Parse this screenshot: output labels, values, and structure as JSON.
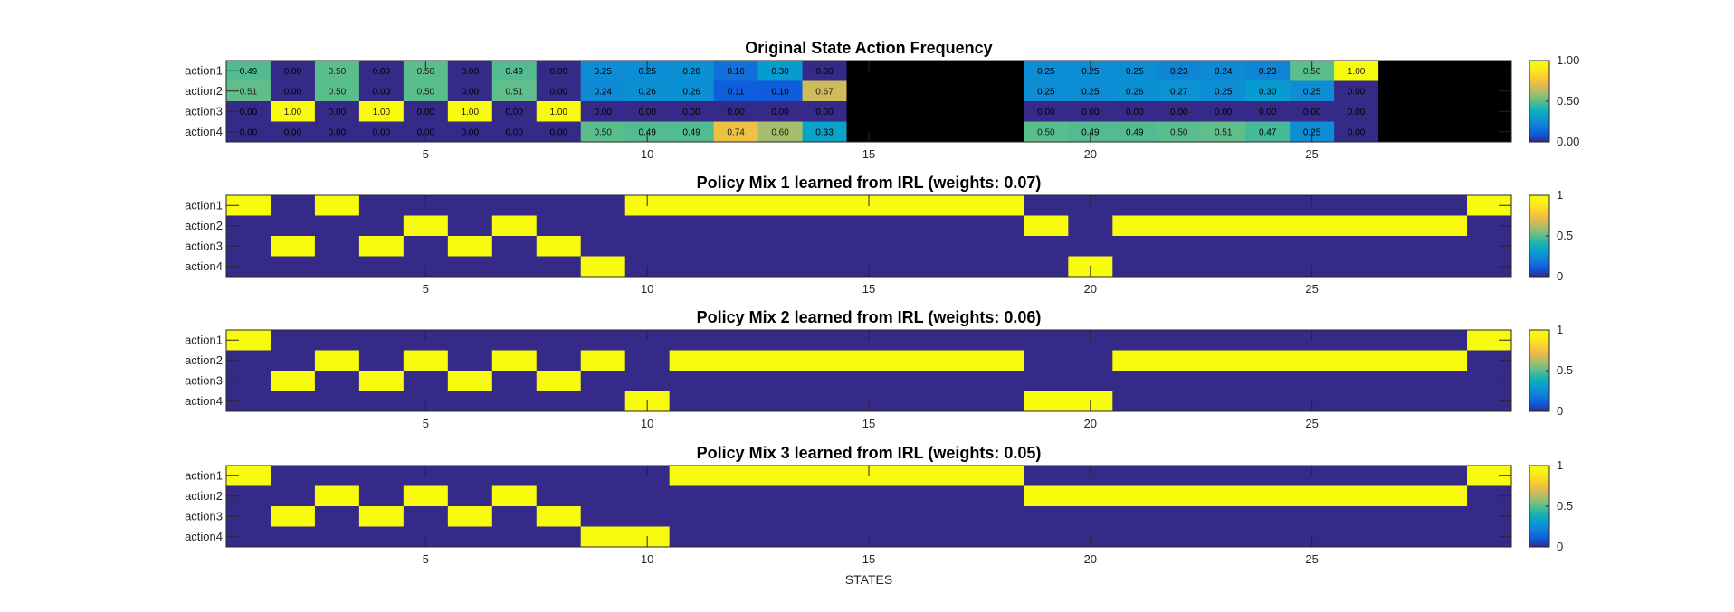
{
  "chart_data": [
    {
      "type": "heatmap",
      "title": "Original State Action Frequency",
      "rows": [
        "action1",
        "action2",
        "action3",
        "action4"
      ],
      "xticks": [
        5,
        10,
        15,
        20,
        25
      ],
      "xlim": [
        0.5,
        29.5
      ],
      "clim": [
        0,
        1
      ],
      "colorbar_ticks": [
        "0.00",
        "0.50",
        "1.00"
      ],
      "colorbar_values": [
        0,
        0.5,
        1
      ],
      "show_labels": true,
      "nan_color": "#000000",
      "values": [
        [
          0.49,
          0.0,
          0.5,
          0.0,
          0.5,
          0.0,
          0.49,
          0.0,
          0.25,
          0.25,
          0.26,
          0.16,
          0.3,
          0.0,
          null,
          null,
          null,
          null,
          0.25,
          0.25,
          0.25,
          0.23,
          0.24,
          0.23,
          0.5,
          1.0,
          null,
          null,
          null
        ],
        [
          0.51,
          0.0,
          0.5,
          0.0,
          0.5,
          0.0,
          0.51,
          0.0,
          0.24,
          0.26,
          0.26,
          0.11,
          0.1,
          0.67,
          null,
          null,
          null,
          null,
          0.25,
          0.25,
          0.26,
          0.27,
          0.25,
          0.3,
          0.25,
          0.0,
          null,
          null,
          null
        ],
        [
          0.0,
          1.0,
          0.0,
          1.0,
          0.0,
          1.0,
          0.0,
          1.0,
          0.0,
          0.0,
          0.0,
          0.0,
          0.0,
          0.0,
          null,
          null,
          null,
          null,
          0.0,
          0.0,
          0.0,
          0.0,
          0.0,
          0.0,
          0.0,
          0.0,
          null,
          null,
          null
        ],
        [
          0.0,
          0.0,
          0.0,
          0.0,
          0.0,
          0.0,
          0.0,
          0.0,
          0.5,
          0.49,
          0.49,
          0.74,
          0.6,
          0.33,
          null,
          null,
          null,
          null,
          0.5,
          0.49,
          0.49,
          0.5,
          0.51,
          0.47,
          0.25,
          0.0,
          null,
          null,
          null
        ]
      ]
    },
    {
      "type": "heatmap",
      "title": "Policy Mix 1 learned from IRL (weights: 0.07)",
      "rows": [
        "action1",
        "action2",
        "action3",
        "action4"
      ],
      "xticks": [
        5,
        10,
        15,
        20,
        25
      ],
      "xlim": [
        0.5,
        29.5
      ],
      "clim": [
        0,
        1
      ],
      "colorbar_ticks": [
        "0",
        "0.5",
        "1"
      ],
      "colorbar_values": [
        0,
        0.5,
        1
      ],
      "show_labels": false,
      "values": [
        [
          1,
          0,
          1,
          0,
          0,
          0,
          0,
          0,
          0,
          1,
          1,
          1,
          1,
          1,
          1,
          1,
          1,
          1,
          0,
          0,
          0,
          0,
          0,
          0,
          0,
          0,
          0,
          0,
          1
        ],
        [
          0,
          0,
          0,
          0,
          1,
          0,
          1,
          0,
          0,
          0,
          0,
          0,
          0,
          0,
          0,
          0,
          0,
          0,
          1,
          0,
          1,
          1,
          1,
          1,
          1,
          1,
          1,
          1,
          0
        ],
        [
          0,
          1,
          0,
          1,
          0,
          1,
          0,
          1,
          0,
          0,
          0,
          0,
          0,
          0,
          0,
          0,
          0,
          0,
          0,
          0,
          0,
          0,
          0,
          0,
          0,
          0,
          0,
          0,
          0
        ],
        [
          0,
          0,
          0,
          0,
          0,
          0,
          0,
          0,
          1,
          0,
          0,
          0,
          0,
          0,
          0,
          0,
          0,
          0,
          0,
          1,
          0,
          0,
          0,
          0,
          0,
          0,
          0,
          0,
          0
        ]
      ]
    },
    {
      "type": "heatmap",
      "title": "Policy Mix 2 learned from IRL (weights: 0.06)",
      "rows": [
        "action1",
        "action2",
        "action3",
        "action4"
      ],
      "xticks": [
        5,
        10,
        15,
        20,
        25
      ],
      "xlim": [
        0.5,
        29.5
      ],
      "clim": [
        0,
        1
      ],
      "colorbar_ticks": [
        "0",
        "0.5",
        "1"
      ],
      "colorbar_values": [
        0,
        0.5,
        1
      ],
      "show_labels": false,
      "values": [
        [
          1,
          0,
          0,
          0,
          0,
          0,
          0,
          0,
          0,
          0,
          0,
          0,
          0,
          0,
          0,
          0,
          0,
          0,
          0,
          0,
          0,
          0,
          0,
          0,
          0,
          0,
          0,
          0,
          1
        ],
        [
          0,
          0,
          1,
          0,
          1,
          0,
          1,
          0,
          1,
          0,
          1,
          1,
          1,
          1,
          1,
          1,
          1,
          1,
          0,
          0,
          1,
          1,
          1,
          1,
          1,
          1,
          1,
          1,
          0
        ],
        [
          0,
          1,
          0,
          1,
          0,
          1,
          0,
          1,
          0,
          0,
          0,
          0,
          0,
          0,
          0,
          0,
          0,
          0,
          0,
          0,
          0,
          0,
          0,
          0,
          0,
          0,
          0,
          0,
          0
        ],
        [
          0,
          0,
          0,
          0,
          0,
          0,
          0,
          0,
          0,
          1,
          0,
          0,
          0,
          0,
          0,
          0,
          0,
          0,
          1,
          1,
          0,
          0,
          0,
          0,
          0,
          0,
          0,
          0,
          0
        ]
      ]
    },
    {
      "type": "heatmap",
      "title": "Policy Mix 3 learned from IRL (weights: 0.05)",
      "rows": [
        "action1",
        "action2",
        "action3",
        "action4"
      ],
      "xticks": [
        5,
        10,
        15,
        20,
        25
      ],
      "xlim": [
        0.5,
        29.5
      ],
      "clim": [
        0,
        1
      ],
      "colorbar_ticks": [
        "0",
        "0.5",
        "1"
      ],
      "colorbar_values": [
        0,
        0.5,
        1
      ],
      "show_labels": false,
      "xlabel": "STATES",
      "values": [
        [
          1,
          0,
          0,
          0,
          0,
          0,
          0,
          0,
          0,
          0,
          1,
          1,
          1,
          1,
          1,
          1,
          1,
          1,
          0,
          0,
          0,
          0,
          0,
          0,
          0,
          0,
          0,
          0,
          1
        ],
        [
          0,
          0,
          1,
          0,
          1,
          0,
          1,
          0,
          0,
          0,
          0,
          0,
          0,
          0,
          0,
          0,
          0,
          0,
          1,
          1,
          1,
          1,
          1,
          1,
          1,
          1,
          1,
          1,
          0
        ],
        [
          0,
          1,
          0,
          1,
          0,
          1,
          0,
          1,
          0,
          0,
          0,
          0,
          0,
          0,
          0,
          0,
          0,
          0,
          0,
          0,
          0,
          0,
          0,
          0,
          0,
          0,
          0,
          0,
          0
        ],
        [
          0,
          0,
          0,
          0,
          0,
          0,
          0,
          0,
          1,
          1,
          0,
          0,
          0,
          0,
          0,
          0,
          0,
          0,
          0,
          0,
          0,
          0,
          0,
          0,
          0,
          0,
          0,
          0,
          0
        ]
      ]
    }
  ]
}
